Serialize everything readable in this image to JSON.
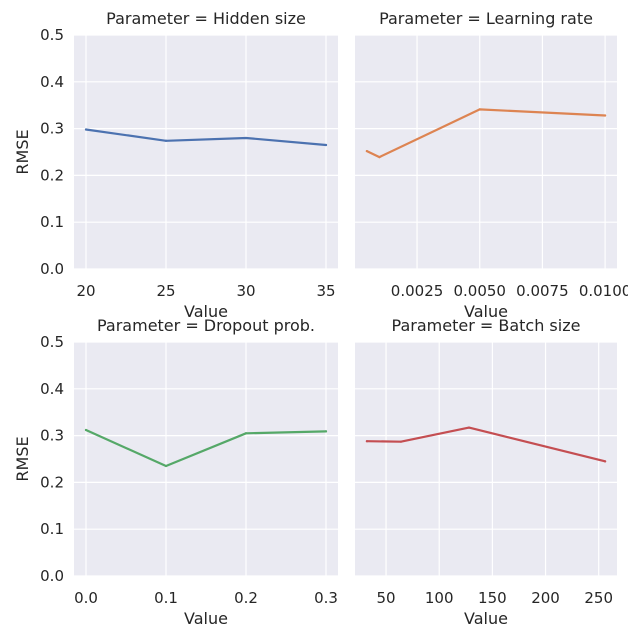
{
  "chart_data": [
    {
      "type": "line",
      "title": "Parameter = Hidden size",
      "xlabel": "Value",
      "ylabel": "RMSE",
      "color": "#4c72b0",
      "x": [
        20,
        25,
        30,
        35
      ],
      "y": [
        0.298,
        0.274,
        0.28,
        0.265
      ],
      "xlim": [
        19.25,
        35.75
      ],
      "ylim": [
        0,
        0.5
      ],
      "xticks": [
        20,
        25,
        30,
        35
      ],
      "xtick_labels": [
        "20",
        "25",
        "30",
        "35"
      ],
      "yticks": [
        0,
        0.1,
        0.2,
        0.3,
        0.4,
        0.5
      ],
      "ytick_labels": [
        "0.0",
        "0.1",
        "0.2",
        "0.3",
        "0.4",
        "0.5"
      ],
      "grid": true
    },
    {
      "type": "line",
      "title": "Parameter = Learning rate",
      "xlabel": "Value",
      "ylabel": "",
      "color": "#dd8452",
      "x": [
        0.0005,
        0.001,
        0.005,
        0.01
      ],
      "y": [
        0.252,
        0.239,
        0.341,
        0.328
      ],
      "xlim": [
        2.5e-05,
        0.010475
      ],
      "ylim": [
        0,
        0.5
      ],
      "xticks": [
        0.0025,
        0.005,
        0.0075,
        0.01
      ],
      "xtick_labels": [
        "0.0025",
        "0.0050",
        "0.0075",
        "0.0100"
      ],
      "yticks": [
        0,
        0.1,
        0.2,
        0.3,
        0.4,
        0.5
      ],
      "ytick_labels": [],
      "grid": true
    },
    {
      "type": "line",
      "title": "Parameter = Dropout prob.",
      "xlabel": "Value",
      "ylabel": "RMSE",
      "color": "#55a868",
      "x": [
        0.0,
        0.1,
        0.2,
        0.3
      ],
      "y": [
        0.312,
        0.235,
        0.305,
        0.309
      ],
      "xlim": [
        -0.015,
        0.315
      ],
      "ylim": [
        0,
        0.5
      ],
      "xticks": [
        0.0,
        0.1,
        0.2,
        0.3
      ],
      "xtick_labels": [
        "0.0",
        "0.1",
        "0.2",
        "0.3"
      ],
      "yticks": [
        0,
        0.1,
        0.2,
        0.3,
        0.4,
        0.5
      ],
      "ytick_labels": [
        "0.0",
        "0.1",
        "0.2",
        "0.3",
        "0.4",
        "0.5"
      ],
      "grid": true
    },
    {
      "type": "line",
      "title": "Parameter = Batch size",
      "xlabel": "Value",
      "ylabel": "",
      "color": "#c44e52",
      "x": [
        32,
        64,
        128,
        256
      ],
      "y": [
        0.288,
        0.287,
        0.317,
        0.245
      ],
      "xlim": [
        20.8,
        267.2
      ],
      "ylim": [
        0,
        0.5
      ],
      "xticks": [
        50,
        100,
        150,
        200,
        250
      ],
      "xtick_labels": [
        "50",
        "100",
        "150",
        "200",
        "250"
      ],
      "yticks": [
        0,
        0.1,
        0.2,
        0.3,
        0.4,
        0.5
      ],
      "ytick_labels": [],
      "grid": true
    }
  ]
}
